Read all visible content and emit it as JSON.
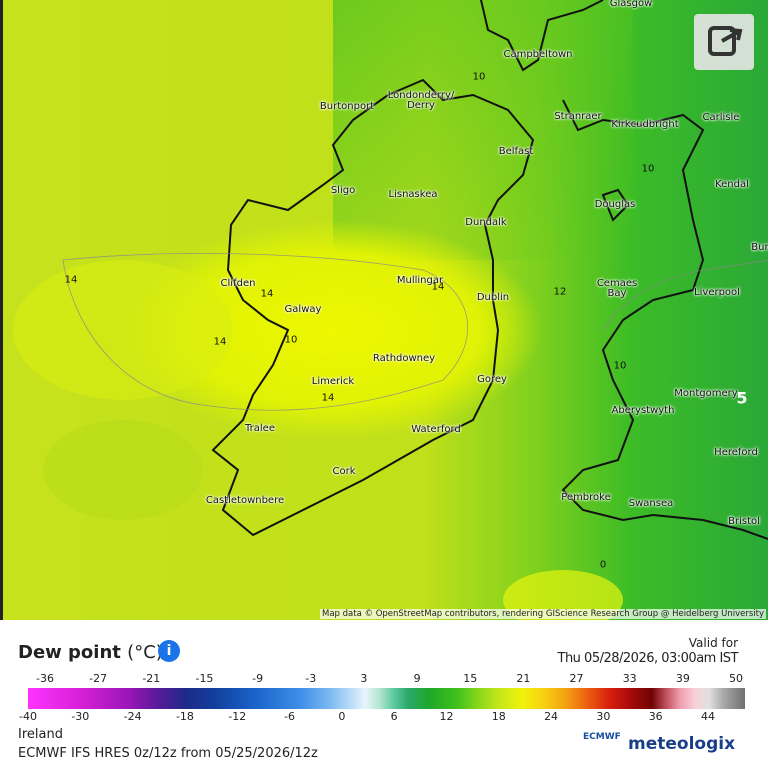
{
  "map": {
    "places": [
      "Glasgow",
      "Campbeltown",
      "Londonderry/\nDerry",
      "Burtonport",
      "Stranraer",
      "Kirkcudbright",
      "Carlisle",
      "Belfast",
      "Kendal",
      "Sligo",
      "Lisnaskea",
      "Douglas",
      "Dundalk",
      "Burn",
      "Clifden",
      "Mullingar",
      "Galway",
      "Dublin",
      "Cemaes\nBay",
      "Liverpool",
      "Rathdowney",
      "Limerick",
      "Gorey",
      "Montgomery",
      "Aberystwyth",
      "Tralee",
      "Waterford",
      "Hereford",
      "Cork",
      "Castletownbere",
      "Pembroke",
      "Swansea",
      "Bristol"
    ],
    "contour_labels": [
      10,
      10,
      14,
      14,
      14,
      14,
      10,
      14,
      12,
      10,
      5,
      0
    ],
    "attribution": "Map data © OpenStreetMap contributors, rendering GIScience Research Group @ Heidelberg University"
  },
  "legend": {
    "title": "Dew point",
    "unit": "(°C)",
    "info": "i",
    "valid_for": "Valid for",
    "valid_time": "Thu 05/28/2026, 03:00am IST",
    "scale_top": [
      -36,
      -27,
      -21,
      -15,
      -9,
      -3,
      3,
      9,
      15,
      21,
      27,
      33,
      39,
      50
    ],
    "scale_bottom": [
      -40,
      -30,
      -24,
      -18,
      -12,
      -6,
      0,
      6,
      12,
      18,
      24,
      30,
      36,
      44
    ],
    "region": "Ireland",
    "model": "ECMWF IFS HRES 0z/12z from 05/25/2026/12z",
    "ecmwf_logo": "ECMWF",
    "brand": "meteologix"
  }
}
